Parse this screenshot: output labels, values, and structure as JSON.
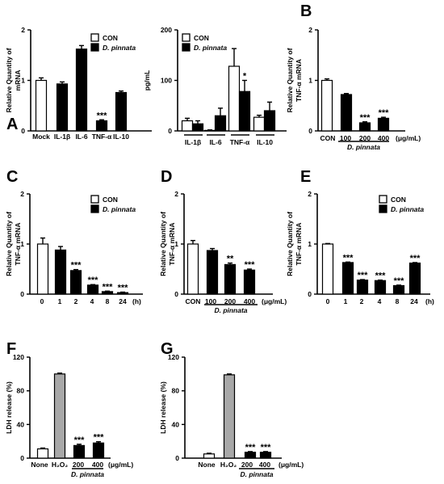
{
  "colors": {
    "CON": "#ffffff",
    "D. pinnata": "#000000",
    "H2O2": "#a8a8a8"
  },
  "chart_data": [
    {
      "panel": "A",
      "type": "bar",
      "ylabel": "Relative Quantity of mRNA",
      "ylim": [
        0,
        2
      ],
      "yticks": [
        "0",
        "1",
        "2"
      ],
      "categories": [
        "Mock",
        "IL-1β",
        "IL-6",
        "TNF-α",
        "IL-10"
      ],
      "bars": [
        {
          "cat": "Mock",
          "v": 1.0,
          "err": 0.05,
          "color": "CON",
          "sig": ""
        },
        {
          "cat": "IL-1β",
          "v": 0.93,
          "err": 0.04,
          "color": "D. pinnata",
          "sig": ""
        },
        {
          "cat": "IL-6",
          "v": 1.62,
          "err": 0.07,
          "color": "D. pinnata",
          "sig": ""
        },
        {
          "cat": "TNF-α",
          "v": 0.2,
          "err": 0.02,
          "color": "D. pinnata",
          "sig": "***"
        },
        {
          "cat": "IL-10",
          "v": 0.76,
          "err": 0.03,
          "color": "D. pinnata",
          "sig": ""
        }
      ],
      "legend": [
        "CON",
        "D. pinnata"
      ],
      "legend_position": "top-right"
    },
    {
      "panel": "",
      "type": "bar",
      "ylabel": "pg/mL",
      "ylim": [
        0,
        200
      ],
      "yticks": [
        "0",
        "100",
        "200"
      ],
      "categories": [
        "IL-1β",
        "IL-6",
        "TNF-α",
        "IL-10"
      ],
      "bars": [
        {
          "cat": "IL-1β",
          "v": 20,
          "err": 5,
          "color": "CON",
          "sig": ""
        },
        {
          "cat": "IL-1β",
          "v": 14,
          "err": 6,
          "color": "D. pinnata",
          "sig": ""
        },
        {
          "cat": "IL-6",
          "v": 1,
          "err": 1,
          "color": "CON",
          "sig": ""
        },
        {
          "cat": "IL-6",
          "v": 30,
          "err": 15,
          "color": "D. pinnata",
          "sig": ""
        },
        {
          "cat": "TNF-α",
          "v": 128,
          "err": 35,
          "color": "CON",
          "sig": ""
        },
        {
          "cat": "TNF-α",
          "v": 78,
          "err": 22,
          "color": "D. pinnata",
          "sig": "*"
        },
        {
          "cat": "IL-10",
          "v": 27,
          "err": 4,
          "color": "CON",
          "sig": ""
        },
        {
          "cat": "IL-10",
          "v": 40,
          "err": 17,
          "color": "D. pinnata",
          "sig": ""
        }
      ],
      "legend": [
        "CON",
        "D. pinnata"
      ],
      "legend_position": "top-right"
    },
    {
      "panel": "B",
      "type": "bar",
      "ylabel": "Relative Quantity of TNF-α mRNA",
      "ylim": [
        0,
        2
      ],
      "yticks": [
        "0",
        "1",
        "2"
      ],
      "categories": [
        "CON",
        "100",
        "200",
        "400"
      ],
      "unit": "(μg/mL)",
      "group_label": "D. pinnata",
      "bars": [
        {
          "cat": "CON",
          "v": 1.0,
          "err": 0.03,
          "color": "CON",
          "sig": ""
        },
        {
          "cat": "100",
          "v": 0.72,
          "err": 0.02,
          "color": "D. pinnata",
          "sig": ""
        },
        {
          "cat": "200",
          "v": 0.16,
          "err": 0.02,
          "color": "D. pinnata",
          "sig": "***"
        },
        {
          "cat": "400",
          "v": 0.25,
          "err": 0.02,
          "color": "D. pinnata",
          "sig": "***"
        }
      ]
    },
    {
      "panel": "C",
      "type": "bar",
      "ylabel": "Relative Quantity of TNF-α mRNA",
      "ylim": [
        0,
        2
      ],
      "yticks": [
        "0",
        "1",
        "2"
      ],
      "categories": [
        "0",
        "1",
        "2",
        "4",
        "8",
        "24"
      ],
      "unit": "(h)",
      "bars": [
        {
          "cat": "0",
          "v": 1.0,
          "err": 0.12,
          "color": "CON",
          "sig": ""
        },
        {
          "cat": "1",
          "v": 0.88,
          "err": 0.07,
          "color": "D. pinnata",
          "sig": ""
        },
        {
          "cat": "2",
          "v": 0.47,
          "err": 0.02,
          "color": "D. pinnata",
          "sig": "***"
        },
        {
          "cat": "4",
          "v": 0.18,
          "err": 0.01,
          "color": "D. pinnata",
          "sig": "***"
        },
        {
          "cat": "8",
          "v": 0.05,
          "err": 0.01,
          "color": "D. pinnata",
          "sig": "***"
        },
        {
          "cat": "24",
          "v": 0.03,
          "err": 0.01,
          "color": "D. pinnata",
          "sig": "***"
        }
      ],
      "legend": [
        "CON",
        "D. pinnata"
      ],
      "legend_position": "top-right"
    },
    {
      "panel": "D",
      "type": "bar",
      "ylabel": "Relative Quantity of TNF-α mRNA",
      "ylim": [
        0,
        2
      ],
      "yticks": [
        "0",
        "1",
        "2"
      ],
      "categories": [
        "CON",
        "100",
        "200",
        "400"
      ],
      "unit": "(μg/mL)",
      "group_label": "D. pinnata",
      "bars": [
        {
          "cat": "CON",
          "v": 1.0,
          "err": 0.07,
          "color": "CON",
          "sig": ""
        },
        {
          "cat": "100",
          "v": 0.87,
          "err": 0.04,
          "color": "D. pinnata",
          "sig": ""
        },
        {
          "cat": "200",
          "v": 0.59,
          "err": 0.03,
          "color": "D. pinnata",
          "sig": "**"
        },
        {
          "cat": "400",
          "v": 0.48,
          "err": 0.02,
          "color": "D. pinnata",
          "sig": "***"
        }
      ]
    },
    {
      "panel": "E",
      "type": "bar",
      "ylabel": "Relative Quantity of TNF-α mRNA",
      "ylim": [
        0,
        2
      ],
      "yticks": [
        "0",
        "1",
        "2"
      ],
      "categories": [
        "0",
        "1",
        "2",
        "4",
        "8",
        "24"
      ],
      "unit": "(h)",
      "bars": [
        {
          "cat": "0",
          "v": 1.0,
          "err": 0.01,
          "color": "CON",
          "sig": ""
        },
        {
          "cat": "1",
          "v": 0.63,
          "err": 0.01,
          "color": "D. pinnata",
          "sig": "***"
        },
        {
          "cat": "2",
          "v": 0.28,
          "err": 0.01,
          "color": "D. pinnata",
          "sig": "***"
        },
        {
          "cat": "4",
          "v": 0.27,
          "err": 0.01,
          "color": "D. pinnata",
          "sig": "***"
        },
        {
          "cat": "8",
          "v": 0.17,
          "err": 0.01,
          "color": "D. pinnata",
          "sig": "***"
        },
        {
          "cat": "24",
          "v": 0.62,
          "err": 0.01,
          "color": "D. pinnata",
          "sig": "***"
        }
      ],
      "legend": [
        "CON",
        "D. pinnata"
      ],
      "legend_position": "top-right"
    },
    {
      "panel": "F",
      "type": "bar",
      "ylabel": "LDH release (%)",
      "ylim": [
        0,
        120
      ],
      "yticks": [
        "0",
        "40",
        "80",
        "120"
      ],
      "categories": [
        "None",
        "H₂O₂",
        "200",
        "400"
      ],
      "unit": "(μg/mL)",
      "group_label": "D. pinnata",
      "bars": [
        {
          "cat": "None",
          "v": 11,
          "err": 1,
          "color": "CON",
          "sig": ""
        },
        {
          "cat": "H₂O₂",
          "v": 100,
          "err": 1,
          "color": "H2O2",
          "sig": ""
        },
        {
          "cat": "200",
          "v": 15,
          "err": 1.5,
          "color": "D. pinnata",
          "sig": "***"
        },
        {
          "cat": "400",
          "v": 18,
          "err": 1.5,
          "color": "D. pinnata",
          "sig": "***"
        }
      ]
    },
    {
      "panel": "G",
      "type": "bar",
      "ylabel": "LDH release (%)",
      "ylim": [
        0,
        120
      ],
      "yticks": [
        "0",
        "40",
        "80",
        "120"
      ],
      "categories": [
        "None",
        "H₂O₂",
        "200",
        "400"
      ],
      "unit": "(μg/mL)",
      "group_label": "D. pinnata",
      "bars": [
        {
          "cat": "None",
          "v": 5,
          "err": 0.8,
          "color": "CON",
          "sig": ""
        },
        {
          "cat": "H₂O₂",
          "v": 99,
          "err": 1,
          "color": "H2O2",
          "sig": ""
        },
        {
          "cat": "200",
          "v": 7,
          "err": 0.8,
          "color": "D. pinnata",
          "sig": "***"
        },
        {
          "cat": "400",
          "v": 7,
          "err": 0.8,
          "color": "D. pinnata",
          "sig": "***"
        }
      ]
    }
  ]
}
